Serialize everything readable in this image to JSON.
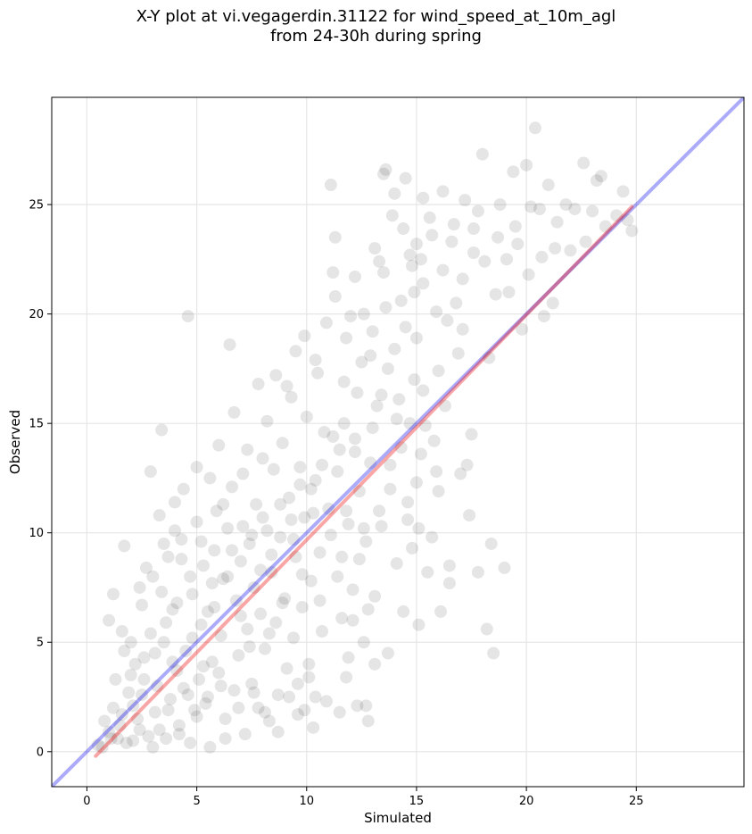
{
  "chart_data": {
    "type": "scatter",
    "title_lines": [
      "X-Y plot at vi.vegagerdin.31122 for wind_speed_at_10m_agl",
      "from 24-30h during spring"
    ],
    "xlabel": "Simulated",
    "ylabel": "Observed",
    "xlim": [
      -1.6,
      29.9
    ],
    "ylim": [
      -1.6,
      29.9
    ],
    "xticks": [
      0,
      5,
      10,
      15,
      20,
      25
    ],
    "yticks": [
      0,
      5,
      10,
      15,
      20,
      25
    ],
    "grid": true,
    "point_color": "#000000",
    "point_opacity": 0.1,
    "identity_line": {
      "color": "#0000ee",
      "opacity": 0.33,
      "from": [
        -1.6,
        -1.6
      ],
      "to": [
        29.9,
        29.9
      ]
    },
    "fit_line": {
      "color": "#ee0000",
      "opacity": 0.35,
      "from": [
        0.4,
        -0.2
      ],
      "to": [
        24.8,
        24.9
      ]
    },
    "points": [
      [
        0.5,
        0.3
      ],
      [
        0.8,
        1.4
      ],
      [
        1.0,
        0.9
      ],
      [
        1.2,
        2.0
      ],
      [
        1.5,
        1.2
      ],
      [
        1.0,
        6.0
      ],
      [
        1.2,
        7.2
      ],
      [
        1.7,
        9.4
      ],
      [
        1.6,
        5.5
      ],
      [
        2.0,
        3.5
      ],
      [
        2.1,
        0.5
      ],
      [
        2.4,
        1.0
      ],
      [
        2.5,
        2.6
      ],
      [
        2.6,
        4.3
      ],
      [
        2.7,
        8.4
      ],
      [
        2.9,
        12.8
      ],
      [
        3.0,
        0.2
      ],
      [
        3.1,
        1.8
      ],
      [
        3.2,
        3.0
      ],
      [
        3.3,
        10.8
      ],
      [
        3.4,
        14.7
      ],
      [
        3.5,
        5.0
      ],
      [
        3.6,
        0.6
      ],
      [
        3.8,
        2.4
      ],
      [
        3.9,
        6.5
      ],
      [
        4.0,
        11.4
      ],
      [
        4.1,
        3.7
      ],
      [
        4.2,
        1.2
      ],
      [
        4.3,
        8.8
      ],
      [
        4.4,
        2.9
      ],
      [
        4.5,
        4.6
      ],
      [
        4.6,
        19.9
      ],
      [
        4.7,
        0.4
      ],
      [
        4.8,
        7.2
      ],
      [
        4.9,
        1.9
      ],
      [
        5.0,
        10.5
      ],
      [
        5.1,
        3.3
      ],
      [
        5.2,
        5.8
      ],
      [
        5.3,
        8.5
      ],
      [
        5.4,
        2.2
      ],
      [
        5.5,
        6.4
      ],
      [
        5.6,
        0.2
      ],
      [
        5.7,
        4.1
      ],
      [
        5.8,
        9.2
      ],
      [
        5.9,
        11.0
      ],
      [
        6.0,
        3.6
      ],
      [
        6.1,
        5.3
      ],
      [
        6.2,
        7.9
      ],
      [
        6.3,
        1.5
      ],
      [
        6.4,
        10.2
      ],
      [
        6.5,
        18.6
      ],
      [
        6.6,
        12.1
      ],
      [
        6.7,
        2.8
      ],
      [
        6.8,
        6.9
      ],
      [
        6.9,
        4.4
      ],
      [
        7.0,
        8.7
      ],
      [
        7.1,
        12.7
      ],
      [
        7.2,
        0.8
      ],
      [
        7.3,
        5.6
      ],
      [
        7.4,
        9.5
      ],
      [
        7.5,
        3.1
      ],
      [
        7.6,
        7.5
      ],
      [
        7.7,
        11.3
      ],
      [
        7.8,
        2.0
      ],
      [
        7.9,
        6.3
      ],
      [
        8.0,
        13.4
      ],
      [
        8.1,
        4.7
      ],
      [
        8.2,
        10.1
      ],
      [
        8.3,
        1.4
      ],
      [
        8.4,
        8.2
      ],
      [
        8.5,
        12.9
      ],
      [
        8.6,
        5.9
      ],
      [
        8.7,
        2.6
      ],
      [
        8.8,
        9.8
      ],
      [
        8.9,
        14.1
      ],
      [
        9.0,
        7.0
      ],
      [
        9.1,
        3.8
      ],
      [
        9.2,
        11.6
      ],
      [
        9.3,
        16.2
      ],
      [
        9.4,
        5.2
      ],
      [
        9.5,
        8.9
      ],
      [
        9.6,
        1.7
      ],
      [
        9.7,
        13.0
      ],
      [
        9.8,
        6.6
      ],
      [
        9.9,
        10.7
      ],
      [
        10.0,
        15.3
      ],
      [
        10.1,
        4.0
      ],
      [
        10.2,
        7.8
      ],
      [
        10.3,
        1.1
      ],
      [
        10.4,
        12.4
      ],
      [
        10.5,
        17.3
      ],
      [
        10.6,
        9.1
      ],
      [
        10.7,
        5.5
      ],
      [
        10.8,
        14.6
      ],
      [
        10.9,
        2.3
      ],
      [
        11.0,
        11.1
      ],
      [
        11.1,
        25.9
      ],
      [
        11.2,
        21.9
      ],
      [
        11.3,
        23.5
      ],
      [
        11.4,
        8.0
      ],
      [
        11.5,
        13.8
      ],
      [
        11.6,
        6.1
      ],
      [
        11.7,
        16.9
      ],
      [
        11.8,
        3.4
      ],
      [
        11.9,
        10.4
      ],
      [
        12.0,
        19.9
      ],
      [
        12.1,
        7.4
      ],
      [
        12.2,
        14.3
      ],
      [
        12.3,
        2.1
      ],
      [
        12.4,
        11.9
      ],
      [
        12.5,
        17.8
      ],
      [
        12.6,
        5.0
      ],
      [
        12.7,
        9.6
      ],
      [
        12.8,
        1.4
      ],
      [
        12.9,
        13.2
      ],
      [
        13.0,
        19.2
      ],
      [
        13.1,
        7.1
      ],
      [
        13.2,
        15.8
      ],
      [
        13.3,
        22.4
      ],
      [
        13.4,
        10.3
      ],
      [
        13.5,
        26.4
      ],
      [
        13.6,
        26.6
      ],
      [
        13.7,
        4.5
      ],
      [
        13.8,
        12.0
      ],
      [
        13.9,
        24.5
      ],
      [
        14.0,
        18.4
      ],
      [
        14.1,
        8.6
      ],
      [
        14.2,
        16.1
      ],
      [
        14.3,
        20.6
      ],
      [
        14.4,
        6.4
      ],
      [
        14.5,
        26.2
      ],
      [
        14.6,
        11.4
      ],
      [
        14.7,
        22.7
      ],
      [
        14.8,
        9.3
      ],
      [
        14.9,
        17.0
      ],
      [
        15.0,
        23.2
      ],
      [
        15.1,
        5.8
      ],
      [
        15.2,
        13.6
      ],
      [
        15.3,
        21.4
      ],
      [
        15.5,
        8.2
      ],
      [
        15.6,
        24.4
      ],
      [
        15.8,
        14.2
      ],
      [
        16.0,
        11.9
      ],
      [
        16.2,
        25.6
      ],
      [
        16.4,
        19.7
      ],
      [
        16.5,
        8.5
      ],
      [
        16.6,
        23.3
      ],
      [
        16.8,
        20.5
      ],
      [
        17.0,
        12.7
      ],
      [
        17.2,
        25.2
      ],
      [
        17.4,
        10.8
      ],
      [
        17.5,
        14.5
      ],
      [
        17.6,
        22.8
      ],
      [
        17.8,
        24.7
      ],
      [
        18.0,
        27.3
      ],
      [
        18.2,
        5.6
      ],
      [
        18.4,
        9.5
      ],
      [
        18.5,
        4.5
      ],
      [
        18.6,
        20.9
      ],
      [
        18.8,
        25.0
      ],
      [
        19.0,
        8.4
      ],
      [
        19.2,
        21.0
      ],
      [
        19.4,
        26.5
      ],
      [
        19.6,
        23.2
      ],
      [
        19.8,
        19.3
      ],
      [
        20.0,
        26.8
      ],
      [
        20.2,
        24.9
      ],
      [
        20.4,
        28.5
      ],
      [
        20.6,
        24.8
      ],
      [
        20.8,
        19.9
      ],
      [
        21.0,
        25.9
      ],
      [
        21.2,
        20.5
      ],
      [
        21.4,
        24.2
      ],
      [
        21.8,
        25.0
      ],
      [
        22.2,
        24.8
      ],
      [
        22.6,
        26.9
      ],
      [
        23.0,
        24.7
      ],
      [
        23.2,
        26.1
      ],
      [
        23.4,
        26.3
      ],
      [
        24.4,
        25.6
      ],
      [
        24.6,
        24.3
      ],
      [
        24.8,
        23.8
      ],
      [
        15.3,
        16.5
      ],
      [
        16.0,
        17.4
      ],
      [
        15.9,
        12.8
      ],
      [
        15.7,
        9.8
      ],
      [
        15.1,
        10.2
      ],
      [
        14.3,
        13.9
      ],
      [
        15.9,
        20.1
      ],
      [
        15.0,
        18.9
      ],
      [
        16.9,
        18.2
      ],
      [
        17.1,
        19.3
      ],
      [
        16.3,
        15.8
      ],
      [
        14.7,
        15.0
      ],
      [
        15.4,
        14.9
      ],
      [
        16.5,
        7.7
      ],
      [
        17.3,
        13.1
      ],
      [
        17.8,
        8.2
      ],
      [
        16.1,
        6.4
      ],
      [
        18.3,
        18.0
      ],
      [
        15.0,
        12.3
      ],
      [
        14.6,
        10.6
      ],
      [
        13.8,
        13.1
      ],
      [
        13.3,
        11.0
      ],
      [
        12.8,
        6.5
      ],
      [
        13.1,
        4.0
      ],
      [
        12.4,
        8.8
      ],
      [
        11.9,
        4.3
      ],
      [
        12.1,
        6.0
      ],
      [
        11.6,
        8.9
      ],
      [
        12.7,
        2.1
      ],
      [
        11.5,
        1.8
      ],
      [
        10.4,
        2.5
      ],
      [
        10.1,
        3.4
      ],
      [
        9.9,
        1.9
      ],
      [
        9.6,
        3.1
      ],
      [
        9.2,
        2.5
      ],
      [
        8.7,
        0.9
      ],
      [
        8.1,
        1.8
      ],
      [
        7.6,
        2.7
      ],
      [
        6.9,
        2.0
      ],
      [
        6.3,
        0.6
      ],
      [
        6.1,
        3.0
      ],
      [
        5.5,
        2.5
      ],
      [
        5.0,
        1.6
      ],
      [
        4.6,
        2.6
      ],
      [
        4.2,
        0.8
      ],
      [
        3.7,
        1.9
      ],
      [
        3.3,
        1.0
      ],
      [
        2.8,
        0.7
      ],
      [
        2.3,
        1.5
      ],
      [
        1.8,
        0.4
      ],
      [
        1.4,
        0.6
      ],
      [
        1.9,
        2.7
      ],
      [
        2.2,
        4.0
      ],
      [
        1.7,
        4.6
      ],
      [
        2.5,
        6.7
      ],
      [
        2.9,
        5.4
      ],
      [
        3.4,
        7.3
      ],
      [
        3.7,
        8.9
      ],
      [
        3.9,
        4.1
      ],
      [
        4.3,
        9.7
      ],
      [
        4.8,
        5.2
      ],
      [
        5.3,
        3.9
      ],
      [
        5.8,
        6.6
      ],
      [
        6.4,
        8.0
      ],
      [
        7.0,
        6.2
      ],
      [
        7.4,
        4.8
      ],
      [
        7.9,
        8.3
      ],
      [
        8.3,
        5.4
      ],
      [
        8.9,
        6.8
      ],
      [
        9.4,
        9.7
      ],
      [
        9.8,
        8.1
      ],
      [
        10.2,
        12.0
      ],
      [
        10.6,
        6.9
      ],
      [
        11.1,
        9.9
      ],
      [
        11.4,
        12.8
      ],
      [
        11.8,
        11.0
      ],
      [
        12.2,
        13.7
      ],
      [
        12.6,
        10.2
      ],
      [
        13.0,
        14.8
      ],
      [
        13.4,
        16.3
      ],
      [
        13.7,
        17.5
      ],
      [
        14.1,
        15.2
      ],
      [
        14.5,
        19.4
      ],
      [
        14.9,
        21.0
      ],
      [
        15.2,
        22.5
      ],
      [
        13.6,
        20.3
      ],
      [
        12.9,
        18.1
      ],
      [
        12.3,
        16.4
      ],
      [
        11.7,
        15.0
      ],
      [
        11.2,
        14.4
      ],
      [
        10.7,
        13.1
      ],
      [
        10.3,
        10.9
      ],
      [
        9.7,
        12.2
      ],
      [
        9.3,
        10.6
      ],
      [
        8.8,
        11.3
      ],
      [
        8.4,
        9.0
      ],
      [
        8.0,
        10.7
      ],
      [
        7.5,
        9.9
      ],
      [
        7.1,
        10.3
      ],
      [
        6.6,
        9.2
      ],
      [
        6.2,
        11.3
      ],
      [
        5.7,
        7.7
      ],
      [
        5.2,
        9.6
      ],
      [
        4.7,
        8.0
      ],
      [
        4.1,
        6.8
      ],
      [
        3.6,
        5.9
      ],
      [
        3.1,
        4.5
      ],
      [
        2.6,
        3.3
      ],
      [
        2.1,
        2.1
      ],
      [
        1.6,
        1.7
      ],
      [
        1.1,
        0.6
      ],
      [
        0.7,
        0.2
      ],
      [
        1.3,
        3.3
      ],
      [
        2.0,
        5.0
      ],
      [
        2.4,
        7.5
      ],
      [
        3.0,
        8.0
      ],
      [
        3.5,
        9.5
      ],
      [
        4.0,
        10.1
      ],
      [
        4.4,
        12.0
      ],
      [
        5.0,
        13.0
      ],
      [
        5.6,
        12.5
      ],
      [
        6.0,
        14.0
      ],
      [
        6.7,
        15.5
      ],
      [
        7.3,
        13.8
      ],
      [
        7.8,
        16.8
      ],
      [
        8.2,
        15.1
      ],
      [
        8.6,
        17.2
      ],
      [
        9.1,
        16.7
      ],
      [
        9.5,
        18.3
      ],
      [
        9.9,
        19.0
      ],
      [
        10.4,
        17.9
      ],
      [
        10.9,
        19.6
      ],
      [
        11.3,
        20.8
      ],
      [
        11.8,
        18.9
      ],
      [
        12.2,
        21.7
      ],
      [
        12.6,
        20.0
      ],
      [
        13.1,
        23.0
      ],
      [
        13.5,
        21.9
      ],
      [
        14.0,
        25.5
      ],
      [
        14.4,
        23.9
      ],
      [
        14.8,
        22.2
      ],
      [
        15.3,
        25.3
      ],
      [
        15.7,
        23.6
      ],
      [
        16.2,
        22.0
      ],
      [
        16.7,
        24.1
      ],
      [
        17.1,
        21.6
      ],
      [
        17.6,
        23.9
      ],
      [
        18.1,
        22.4
      ],
      [
        18.7,
        23.5
      ],
      [
        19.1,
        22.5
      ],
      [
        19.5,
        24.0
      ],
      [
        20.1,
        21.8
      ],
      [
        20.7,
        22.6
      ],
      [
        21.3,
        23.0
      ],
      [
        22.0,
        22.9
      ],
      [
        22.7,
        23.3
      ],
      [
        23.6,
        24.0
      ],
      [
        24.1,
        24.5
      ]
    ]
  }
}
